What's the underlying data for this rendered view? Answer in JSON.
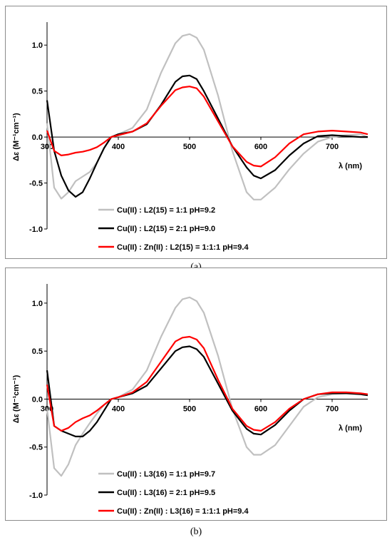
{
  "chart_data": [
    {
      "type": "line",
      "caption": "(a)",
      "xlabel": "λ (nm)",
      "ylabel": "Δε (M⁻¹cm⁻¹)",
      "xlim": [
        300,
        750
      ],
      "ylim": [
        -1.0,
        1.25
      ],
      "x_ticks": [
        "300",
        "400",
        "500",
        "600",
        "700"
      ],
      "y_ticks": [
        "1.0",
        "0.5",
        "0.0",
        "-0.5",
        "-1.0"
      ],
      "grid": false,
      "legend_position": "bottom-left",
      "series": [
        {
          "name": "Cu(II) : L2(15) = 1:1 pH=9.2",
          "color": "#c0c0c0",
          "x": [
            300,
            310,
            320,
            330,
            340,
            350,
            360,
            370,
            380,
            390,
            400,
            420,
            440,
            460,
            480,
            490,
            500,
            510,
            520,
            540,
            560,
            580,
            590,
            600,
            620,
            640,
            660,
            680,
            700,
            720,
            740,
            750
          ],
          "y": [
            0.15,
            -0.55,
            -0.67,
            -0.6,
            -0.48,
            -0.43,
            -0.38,
            -0.28,
            -0.12,
            0.0,
            0.03,
            0.1,
            0.3,
            0.7,
            1.02,
            1.1,
            1.12,
            1.08,
            0.95,
            0.45,
            -0.15,
            -0.6,
            -0.68,
            -0.68,
            -0.55,
            -0.35,
            -0.18,
            -0.05,
            0.0,
            0.02,
            0.03,
            0.0
          ]
        },
        {
          "name": "Cu(II) : L2(15) = 2:1 pH=9.0",
          "color": "#000000",
          "x": [
            300,
            310,
            320,
            330,
            340,
            350,
            360,
            370,
            380,
            390,
            400,
            420,
            440,
            460,
            480,
            490,
            500,
            510,
            520,
            540,
            560,
            580,
            590,
            600,
            620,
            640,
            660,
            680,
            700,
            720,
            740,
            750
          ],
          "y": [
            0.4,
            -0.15,
            -0.42,
            -0.58,
            -0.65,
            -0.6,
            -0.45,
            -0.28,
            -0.12,
            0.0,
            0.03,
            0.06,
            0.14,
            0.35,
            0.6,
            0.66,
            0.67,
            0.63,
            0.5,
            0.2,
            -0.1,
            -0.33,
            -0.42,
            -0.45,
            -0.36,
            -0.2,
            -0.07,
            0.01,
            0.02,
            0.01,
            0.0,
            0.0
          ]
        },
        {
          "name": "Cu(II) : Zn(II) : L2(15) = 1:1:1 pH=9.4",
          "color": "#ff0000",
          "x": [
            300,
            310,
            320,
            330,
            340,
            350,
            360,
            370,
            380,
            390,
            400,
            420,
            440,
            460,
            480,
            490,
            500,
            510,
            520,
            540,
            560,
            580,
            590,
            600,
            620,
            640,
            660,
            680,
            700,
            720,
            740,
            750
          ],
          "y": [
            0.07,
            -0.15,
            -0.2,
            -0.19,
            -0.17,
            -0.16,
            -0.14,
            -0.11,
            -0.06,
            0.0,
            0.02,
            0.06,
            0.15,
            0.34,
            0.51,
            0.54,
            0.55,
            0.53,
            0.44,
            0.17,
            -0.1,
            -0.27,
            -0.31,
            -0.32,
            -0.22,
            -0.07,
            0.03,
            0.06,
            0.07,
            0.06,
            0.05,
            0.03
          ]
        }
      ]
    },
    {
      "type": "line",
      "caption": "(b)",
      "xlabel": "λ (nm)",
      "ylabel": "Δε (M⁻¹cm⁻¹)",
      "xlim": [
        300,
        750
      ],
      "ylim": [
        -1.0,
        1.2
      ],
      "x_ticks": [
        "300",
        "400",
        "500",
        "600",
        "700"
      ],
      "y_ticks": [
        "1.0",
        "0.5",
        "0.0",
        "-0.5",
        "-1.0"
      ],
      "grid": false,
      "legend_position": "bottom-left",
      "series": [
        {
          "name": "Cu(II) : L3(16) = 1:1 pH=9.7",
          "color": "#c0c0c0",
          "x": [
            300,
            310,
            320,
            330,
            340,
            350,
            360,
            370,
            380,
            390,
            400,
            420,
            440,
            460,
            480,
            490,
            500,
            510,
            520,
            540,
            560,
            580,
            590,
            600,
            620,
            640,
            660,
            680,
            700,
            720,
            740,
            750
          ],
          "y": [
            -0.1,
            -0.72,
            -0.8,
            -0.68,
            -0.48,
            -0.36,
            -0.25,
            -0.15,
            -0.06,
            0.0,
            0.02,
            0.1,
            0.3,
            0.65,
            0.95,
            1.04,
            1.06,
            1.02,
            0.9,
            0.45,
            -0.1,
            -0.5,
            -0.58,
            -0.58,
            -0.48,
            -0.28,
            -0.08,
            0.02,
            0.05,
            0.06,
            0.06,
            0.05
          ]
        },
        {
          "name": "Cu(II) : L3(16) = 2:1 pH=9.5",
          "color": "#000000",
          "x": [
            300,
            310,
            320,
            330,
            340,
            350,
            360,
            370,
            380,
            390,
            400,
            420,
            440,
            460,
            480,
            490,
            500,
            510,
            520,
            540,
            560,
            580,
            590,
            600,
            620,
            640,
            660,
            680,
            700,
            720,
            740,
            750
          ],
          "y": [
            0.3,
            -0.28,
            -0.33,
            -0.36,
            -0.39,
            -0.39,
            -0.33,
            -0.24,
            -0.12,
            0.0,
            0.02,
            0.06,
            0.14,
            0.32,
            0.5,
            0.54,
            0.55,
            0.52,
            0.44,
            0.16,
            -0.12,
            -0.31,
            -0.36,
            -0.37,
            -0.27,
            -0.12,
            0.0,
            0.05,
            0.06,
            0.06,
            0.05,
            0.04
          ]
        },
        {
          "name": "Cu(II) : Zn(II) : L3(16) = 1:1:1 pH=9.4",
          "color": "#ff0000",
          "x": [
            300,
            310,
            320,
            330,
            340,
            350,
            360,
            370,
            380,
            390,
            400,
            420,
            440,
            460,
            480,
            490,
            500,
            510,
            520,
            540,
            560,
            580,
            590,
            600,
            620,
            640,
            660,
            680,
            700,
            720,
            740,
            750
          ],
          "y": [
            0.15,
            -0.28,
            -0.33,
            -0.3,
            -0.24,
            -0.2,
            -0.17,
            -0.12,
            -0.06,
            0.0,
            0.02,
            0.07,
            0.18,
            0.39,
            0.6,
            0.64,
            0.65,
            0.62,
            0.53,
            0.2,
            -0.1,
            -0.28,
            -0.32,
            -0.33,
            -0.24,
            -0.1,
            0.0,
            0.05,
            0.07,
            0.07,
            0.06,
            0.05
          ]
        }
      ]
    }
  ]
}
